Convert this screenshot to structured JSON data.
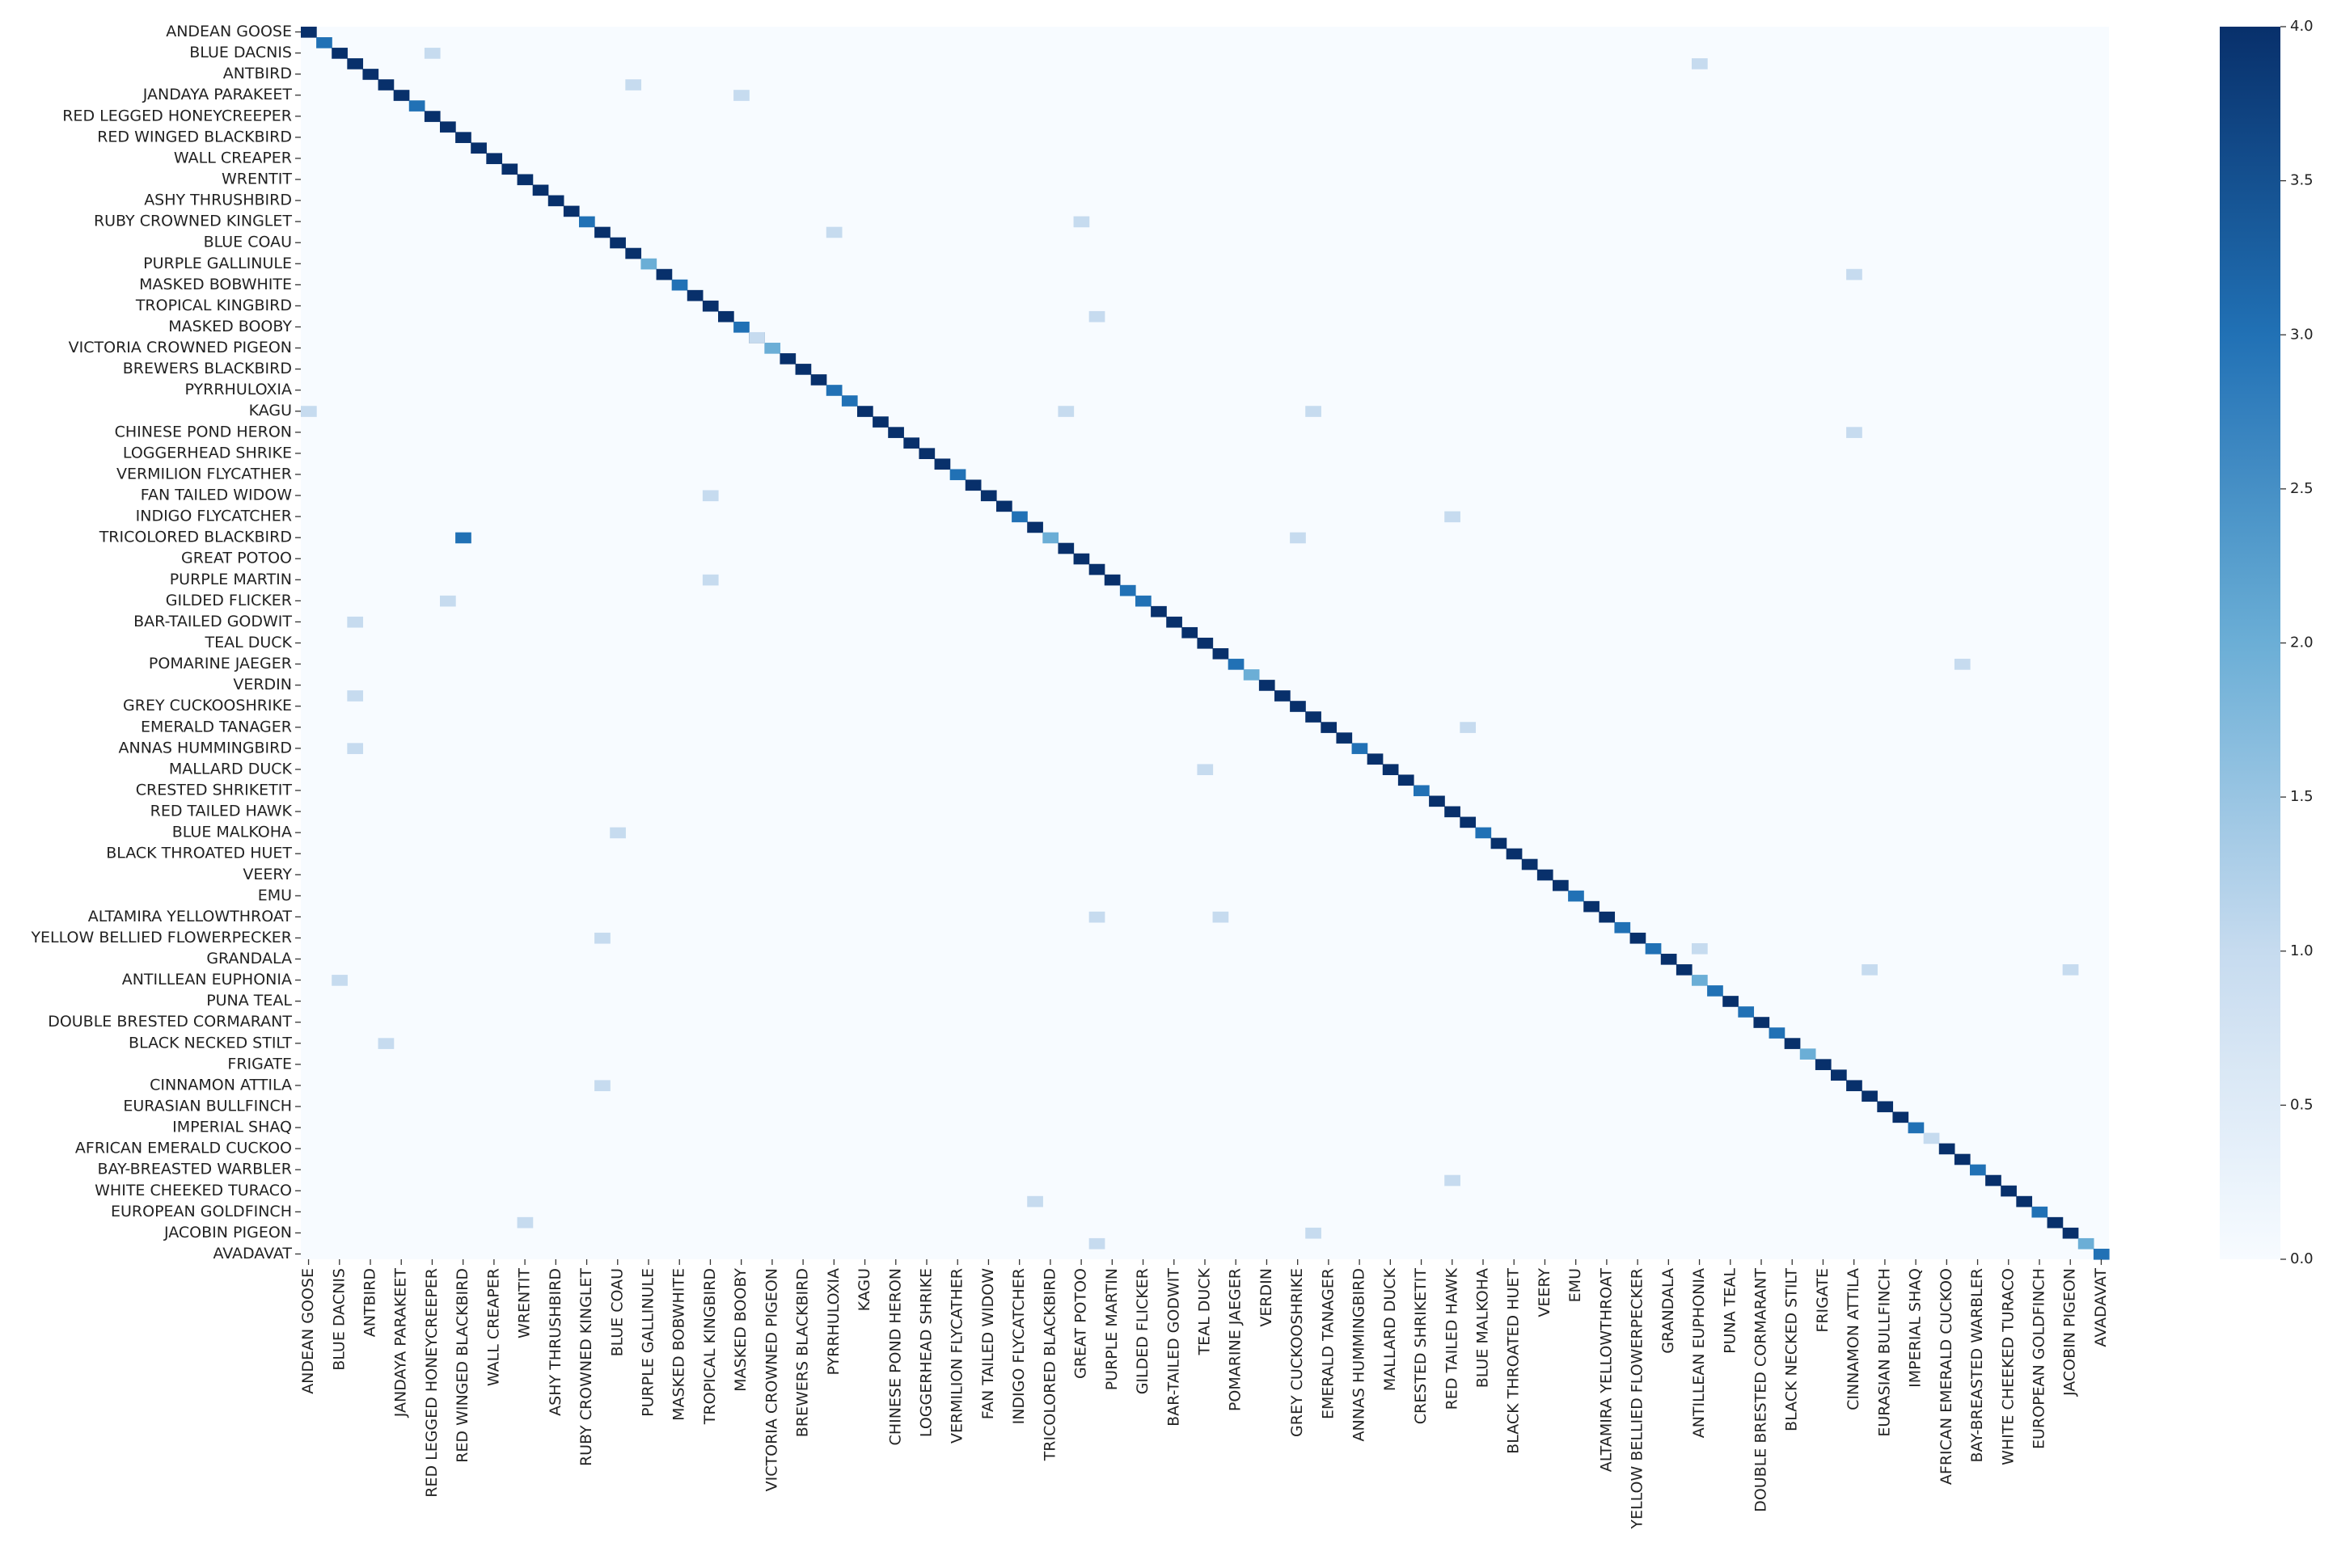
{
  "chart_data": {
    "type": "heatmap",
    "title": "",
    "xlabel": "",
    "ylabel": "",
    "colormap": "Blues",
    "color_low": "#f7fbff",
    "color_high": "#08306b",
    "vmin": 0,
    "vmax": 4,
    "colorbar_ticks": [
      {
        "value": 0,
        "label": "0.0"
      },
      {
        "value": 0.5,
        "label": "0.5"
      },
      {
        "value": 1,
        "label": "1.0"
      },
      {
        "value": 1.5,
        "label": "1.5"
      },
      {
        "value": 2,
        "label": "2.0"
      },
      {
        "value": 2.5,
        "label": "2.5"
      },
      {
        "value": 3,
        "label": "3.0"
      },
      {
        "value": 3.5,
        "label": "3.5"
      },
      {
        "value": 4,
        "label": "4.0"
      }
    ],
    "n_classes": 117,
    "y_tick_labels": [
      {
        "row": 0,
        "label": "ANDEAN GOOSE"
      },
      {
        "row": 2,
        "label": "BLUE DACNIS"
      },
      {
        "row": 4,
        "label": "ANTBIRD"
      },
      {
        "row": 6,
        "label": "JANDAYA PARAKEET"
      },
      {
        "row": 8,
        "label": "RED LEGGED HONEYCREEPER"
      },
      {
        "row": 10,
        "label": "RED WINGED BLACKBIRD"
      },
      {
        "row": 12,
        "label": "WALL CREAPER"
      },
      {
        "row": 14,
        "label": "WRENTIT"
      },
      {
        "row": 16,
        "label": "ASHY THRUSHBIRD"
      },
      {
        "row": 18,
        "label": "RUBY CROWNED KINGLET"
      },
      {
        "row": 20,
        "label": "BLUE COAU"
      },
      {
        "row": 22,
        "label": "PURPLE GALLINULE"
      },
      {
        "row": 24,
        "label": "MASKED BOBWHITE"
      },
      {
        "row": 26,
        "label": "TROPICAL KINGBIRD"
      },
      {
        "row": 28,
        "label": "MASKED BOOBY"
      },
      {
        "row": 30,
        "label": "VICTORIA CROWNED PIGEON"
      },
      {
        "row": 32,
        "label": "BREWERS BLACKBIRD"
      },
      {
        "row": 34,
        "label": "PYRRHULOXIA"
      },
      {
        "row": 36,
        "label": "KAGU"
      },
      {
        "row": 38,
        "label": "CHINESE POND HERON"
      },
      {
        "row": 40,
        "label": "LOGGERHEAD SHRIKE"
      },
      {
        "row": 42,
        "label": "VERMILION FLYCATHER"
      },
      {
        "row": 44,
        "label": "FAN TAILED WIDOW"
      },
      {
        "row": 46,
        "label": "INDIGO FLYCATCHER"
      },
      {
        "row": 48,
        "label": "TRICOLORED BLACKBIRD"
      },
      {
        "row": 50,
        "label": "GREAT POTOO"
      },
      {
        "row": 52,
        "label": "PURPLE MARTIN"
      },
      {
        "row": 54,
        "label": "GILDED FLICKER"
      },
      {
        "row": 56,
        "label": "BAR-TAILED GODWIT"
      },
      {
        "row": 58,
        "label": "TEAL DUCK"
      },
      {
        "row": 60,
        "label": "POMARINE JAEGER"
      },
      {
        "row": 62,
        "label": "VERDIN"
      },
      {
        "row": 64,
        "label": "GREY CUCKOOSHRIKE"
      },
      {
        "row": 66,
        "label": "EMERALD TANAGER"
      },
      {
        "row": 68,
        "label": "ANNAS HUMMINGBIRD"
      },
      {
        "row": 70,
        "label": "MALLARD DUCK"
      },
      {
        "row": 72,
        "label": "CRESTED SHRIKETIT"
      },
      {
        "row": 74,
        "label": "RED TAILED HAWK"
      },
      {
        "row": 76,
        "label": "BLUE MALKOHA"
      },
      {
        "row": 78,
        "label": "BLACK THROATED HUET"
      },
      {
        "row": 80,
        "label": "VEERY"
      },
      {
        "row": 82,
        "label": "EMU"
      },
      {
        "row": 84,
        "label": "ALTAMIRA YELLOWTHROAT"
      },
      {
        "row": 86,
        "label": "YELLOW BELLIED FLOWERPECKER"
      },
      {
        "row": 88,
        "label": "GRANDALA"
      },
      {
        "row": 90,
        "label": "ANTILLEAN EUPHONIA"
      },
      {
        "row": 92,
        "label": "PUNA TEAL"
      },
      {
        "row": 94,
        "label": "DOUBLE BRESTED CORMARANT"
      },
      {
        "row": 96,
        "label": "BLACK NECKED STILT"
      },
      {
        "row": 98,
        "label": "FRIGATE"
      },
      {
        "row": 100,
        "label": "CINNAMON ATTILA"
      },
      {
        "row": 102,
        "label": "EURASIAN BULLFINCH"
      },
      {
        "row": 104,
        "label": "IMPERIAL SHAQ"
      },
      {
        "row": 106,
        "label": "AFRICAN EMERALD CUCKOO"
      },
      {
        "row": 108,
        "label": "BAY-BREASTED WARBLER"
      },
      {
        "row": 110,
        "label": "WHITE CHEEKED TURACO"
      },
      {
        "row": 112,
        "label": "EUROPEAN GOLDFINCH"
      },
      {
        "row": 114,
        "label": "JACOBIN PIGEON"
      },
      {
        "row": 116,
        "label": "AVADAVAT"
      }
    ],
    "x_tick_labels": [
      {
        "col": 0,
        "label": "ANDEAN GOOSE"
      },
      {
        "col": 2,
        "label": "BLUE DACNIS"
      },
      {
        "col": 4,
        "label": "ANTBIRD"
      },
      {
        "col": 6,
        "label": "JANDAYA PARAKEET"
      },
      {
        "col": 8,
        "label": "RED LEGGED HONEYCREEPER"
      },
      {
        "col": 10,
        "label": "RED WINGED BLACKBIRD"
      },
      {
        "col": 12,
        "label": "WALL CREAPER"
      },
      {
        "col": 14,
        "label": "WRENTIT"
      },
      {
        "col": 16,
        "label": "ASHY THRUSHBIRD"
      },
      {
        "col": 18,
        "label": "RUBY CROWNED KINGLET"
      },
      {
        "col": 20,
        "label": "BLUE COAU"
      },
      {
        "col": 22,
        "label": "PURPLE GALLINULE"
      },
      {
        "col": 24,
        "label": "MASKED BOBWHITE"
      },
      {
        "col": 26,
        "label": "TROPICAL KINGBIRD"
      },
      {
        "col": 28,
        "label": "MASKED BOOBY"
      },
      {
        "col": 30,
        "label": "VICTORIA CROWNED PIGEON"
      },
      {
        "col": 32,
        "label": "BREWERS BLACKBIRD"
      },
      {
        "col": 34,
        "label": "PYRRHULOXIA"
      },
      {
        "col": 36,
        "label": "KAGU"
      },
      {
        "col": 38,
        "label": "CHINESE POND HERON"
      },
      {
        "col": 40,
        "label": "LOGGERHEAD SHRIKE"
      },
      {
        "col": 42,
        "label": "VERMILION FLYCATHER"
      },
      {
        "col": 44,
        "label": "FAN TAILED WIDOW"
      },
      {
        "col": 46,
        "label": "INDIGO FLYCATCHER"
      },
      {
        "col": 48,
        "label": "TRICOLORED BLACKBIRD"
      },
      {
        "col": 50,
        "label": "GREAT POTOO"
      },
      {
        "col": 52,
        "label": "PURPLE MARTIN"
      },
      {
        "col": 54,
        "label": "GILDED FLICKER"
      },
      {
        "col": 56,
        "label": "BAR-TAILED GODWIT"
      },
      {
        "col": 58,
        "label": "TEAL DUCK"
      },
      {
        "col": 60,
        "label": "POMARINE JAEGER"
      },
      {
        "col": 62,
        "label": "VERDIN"
      },
      {
        "col": 64,
        "label": "GREY CUCKOOSHRIKE"
      },
      {
        "col": 66,
        "label": "EMERALD TANAGER"
      },
      {
        "col": 68,
        "label": "ANNAS HUMMINGBIRD"
      },
      {
        "col": 70,
        "label": "MALLARD DUCK"
      },
      {
        "col": 72,
        "label": "CRESTED SHRIKETIT"
      },
      {
        "col": 74,
        "label": "RED TAILED HAWK"
      },
      {
        "col": 76,
        "label": "BLUE MALKOHA"
      },
      {
        "col": 78,
        "label": "BLACK THROATED HUET"
      },
      {
        "col": 80,
        "label": "VEERY"
      },
      {
        "col": 82,
        "label": "EMU"
      },
      {
        "col": 84,
        "label": "ALTAMIRA YELLOWTHROAT"
      },
      {
        "col": 86,
        "label": "YELLOW BELLIED FLOWERPECKER"
      },
      {
        "col": 88,
        "label": "GRANDALA"
      },
      {
        "col": 90,
        "label": "ANTILLEAN EUPHONIA"
      },
      {
        "col": 92,
        "label": "PUNA TEAL"
      },
      {
        "col": 94,
        "label": "DOUBLE BRESTED CORMARANT"
      },
      {
        "col": 96,
        "label": "BLACK NECKED STILT"
      },
      {
        "col": 98,
        "label": "FRIGATE"
      },
      {
        "col": 100,
        "label": "CINNAMON ATTILA"
      },
      {
        "col": 102,
        "label": "EURASIAN BULLFINCH"
      },
      {
        "col": 104,
        "label": "IMPERIAL SHAQ"
      },
      {
        "col": 106,
        "label": "AFRICAN EMERALD CUCKOO"
      },
      {
        "col": 108,
        "label": "BAY-BREASTED WARBLER"
      },
      {
        "col": 110,
        "label": "WHITE CHEEKED TURACO"
      },
      {
        "col": 112,
        "label": "EUROPEAN GOLDFINCH"
      },
      {
        "col": 114,
        "label": "JACOBIN PIGEON"
      },
      {
        "col": 116,
        "label": "AVADAVAT"
      }
    ],
    "diagonal_default": 4,
    "diagonal_overrides": [
      {
        "index": 1,
        "value": 3
      },
      {
        "index": 7,
        "value": 3
      },
      {
        "index": 18,
        "value": 3
      },
      {
        "index": 22,
        "value": 2
      },
      {
        "index": 24,
        "value": 3
      },
      {
        "index": 28,
        "value": 3
      },
      {
        "index": 30,
        "value": 2
      },
      {
        "index": 34,
        "value": 3
      },
      {
        "index": 35,
        "value": 3
      },
      {
        "index": 42,
        "value": 3
      },
      {
        "index": 46,
        "value": 3
      },
      {
        "index": 48,
        "value": 2
      },
      {
        "index": 53,
        "value": 3
      },
      {
        "index": 54,
        "value": 3
      },
      {
        "index": 60,
        "value": 3
      },
      {
        "index": 61,
        "value": 2
      },
      {
        "index": 68,
        "value": 3
      },
      {
        "index": 72,
        "value": 3
      },
      {
        "index": 76,
        "value": 3
      },
      {
        "index": 82,
        "value": 3
      },
      {
        "index": 85,
        "value": 3
      },
      {
        "index": 87,
        "value": 3
      },
      {
        "index": 90,
        "value": 2
      },
      {
        "index": 91,
        "value": 3
      },
      {
        "index": 93,
        "value": 3
      },
      {
        "index": 95,
        "value": 3
      },
      {
        "index": 97,
        "value": 2
      },
      {
        "index": 104,
        "value": 3
      },
      {
        "index": 105,
        "value": 1
      },
      {
        "index": 108,
        "value": 3
      },
      {
        "index": 112,
        "value": 3
      },
      {
        "index": 115,
        "value": 2
      },
      {
        "index": 116,
        "value": 3
      }
    ],
    "off_diagonal": [
      {
        "row": 2,
        "col": 8,
        "value": 1
      },
      {
        "row": 3,
        "col": 90,
        "value": 1
      },
      {
        "row": 5,
        "col": 21,
        "value": 1
      },
      {
        "row": 6,
        "col": 28,
        "value": 1
      },
      {
        "row": 19,
        "col": 34,
        "value": 1
      },
      {
        "row": 18,
        "col": 50,
        "value": 1
      },
      {
        "row": 23,
        "col": 100,
        "value": 1
      },
      {
        "row": 27,
        "col": 51,
        "value": 1
      },
      {
        "row": 29,
        "col": 29,
        "value": 1
      },
      {
        "row": 36,
        "col": 0,
        "value": 1
      },
      {
        "row": 36,
        "col": 49,
        "value": 1
      },
      {
        "row": 36,
        "col": 65,
        "value": 1
      },
      {
        "row": 38,
        "col": 100,
        "value": 1
      },
      {
        "row": 44,
        "col": 26,
        "value": 1
      },
      {
        "row": 46,
        "col": 74,
        "value": 1
      },
      {
        "row": 48,
        "col": 10,
        "value": 3
      },
      {
        "row": 48,
        "col": 64,
        "value": 1
      },
      {
        "row": 52,
        "col": 26,
        "value": 1
      },
      {
        "row": 54,
        "col": 9,
        "value": 1
      },
      {
        "row": 56,
        "col": 3,
        "value": 1
      },
      {
        "row": 60,
        "col": 107,
        "value": 1
      },
      {
        "row": 63,
        "col": 3,
        "value": 1
      },
      {
        "row": 66,
        "col": 75,
        "value": 1
      },
      {
        "row": 68,
        "col": 3,
        "value": 1
      },
      {
        "row": 70,
        "col": 58,
        "value": 1
      },
      {
        "row": 76,
        "col": 20,
        "value": 1
      },
      {
        "row": 84,
        "col": 51,
        "value": 1
      },
      {
        "row": 84,
        "col": 59,
        "value": 1
      },
      {
        "row": 86,
        "col": 19,
        "value": 1
      },
      {
        "row": 87,
        "col": 90,
        "value": 1
      },
      {
        "row": 89,
        "col": 101,
        "value": 1
      },
      {
        "row": 89,
        "col": 114,
        "value": 1
      },
      {
        "row": 90,
        "col": 2,
        "value": 1
      },
      {
        "row": 96,
        "col": 5,
        "value": 1
      },
      {
        "row": 100,
        "col": 19,
        "value": 1
      },
      {
        "row": 109,
        "col": 74,
        "value": 1
      },
      {
        "row": 111,
        "col": 47,
        "value": 1
      },
      {
        "row": 113,
        "col": 14,
        "value": 1
      },
      {
        "row": 114,
        "col": 65,
        "value": 1
      },
      {
        "row": 115,
        "col": 51,
        "value": 1
      }
    ]
  }
}
